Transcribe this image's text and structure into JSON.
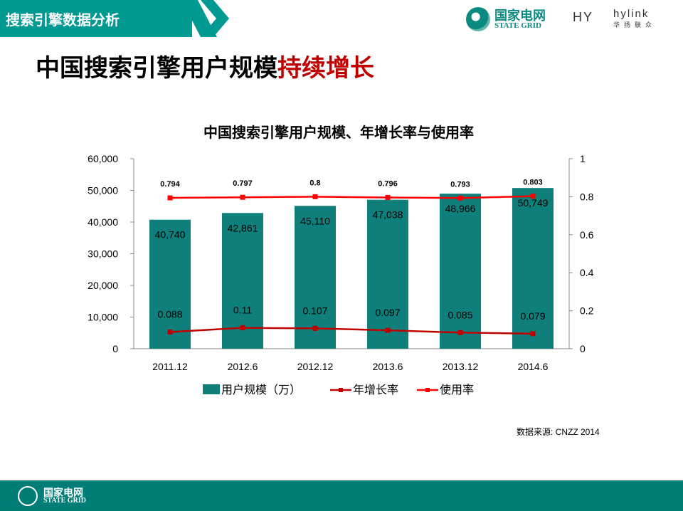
{
  "header": {
    "section_title": "搜索引擎数据分析",
    "logo_cn": "国家电网",
    "logo_en": "STATE GRID",
    "hy": "HY",
    "hylink": "hylink",
    "hylink_sub": "华扬联众"
  },
  "slide_title": {
    "main": "中国搜索引擎用户规模",
    "highlight": "持续增长"
  },
  "source": "数据来源: CNZZ 2014",
  "footer": {
    "logo_cn": "国家电网",
    "logo_en": "STATE GRID"
  },
  "colors": {
    "bar": "#0f7f7b",
    "growth": "#c00000",
    "usage": "#ff0000",
    "teal": "#009a93"
  },
  "chart_data": {
    "type": "bar",
    "title": "中国搜索引擎用户规模、年增长率与使用率",
    "categories": [
      "2011.12",
      "2012.6",
      "2012.12",
      "2013.6",
      "2013.12",
      "2014.6"
    ],
    "y_left": {
      "min": 0,
      "max": 60000,
      "ticks": [
        "0",
        "10,000",
        "20,000",
        "30,000",
        "40,000",
        "50,000",
        "60,000"
      ]
    },
    "y_right": {
      "min": 0,
      "max": 1,
      "ticks": [
        "0",
        "0.2",
        "0.4",
        "0.6",
        "0.8",
        "1"
      ]
    },
    "series": [
      {
        "name": "用户规模（万）",
        "type": "bar",
        "axis": "left",
        "values": [
          40740,
          42861,
          45110,
          47038,
          48966,
          50749
        ],
        "labels": [
          "40,740",
          "42,861",
          "45,110",
          "47,038",
          "48,966",
          "50,749"
        ]
      },
      {
        "name": "年增长率",
        "type": "line",
        "axis": "right",
        "values": [
          0.088,
          0.11,
          0.107,
          0.097,
          0.085,
          0.079
        ],
        "labels": [
          "0.088",
          "0.11",
          "0.107",
          "0.097",
          "0.085",
          "0.079"
        ]
      },
      {
        "name": "使用率",
        "type": "line",
        "axis": "right",
        "values": [
          0.794,
          0.797,
          0.8,
          0.796,
          0.793,
          0.803
        ],
        "labels": [
          "0.794",
          "0.797",
          "0.8",
          "0.796",
          "0.793",
          "0.803"
        ]
      }
    ],
    "legend": "bottom"
  }
}
